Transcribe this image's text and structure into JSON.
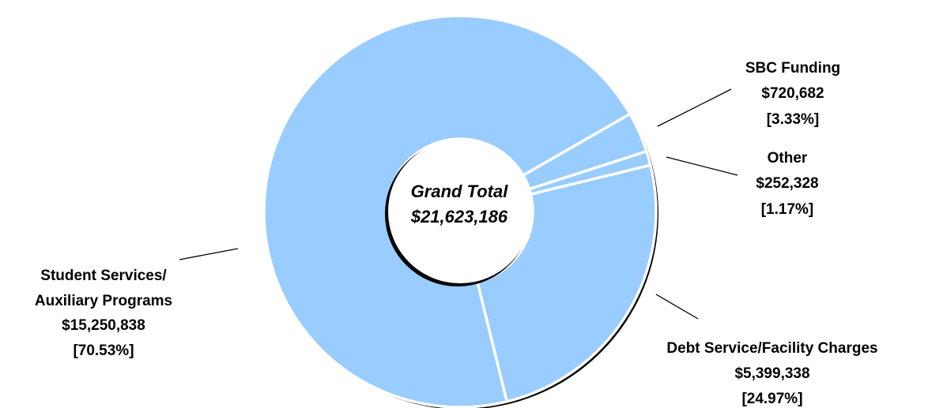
{
  "chart_data": {
    "type": "pie",
    "center_label": {
      "line1": "Grand Total",
      "line2": "$21,623,186"
    },
    "slices": [
      {
        "name": "SBC Funding",
        "amount": "$720,682",
        "percent": "[3.33%]",
        "value": 720682
      },
      {
        "name": "Other",
        "amount": "$252,328",
        "percent": "[1.17%]",
        "value": 252328
      },
      {
        "name": "Debt Service/Facility Charges",
        "amount": "$5,399,338",
        "percent": "[24.97%]",
        "value": 5399338
      },
      {
        "name": "Student Services/ Auxiliary Programs",
        "name_line1": "Student Services/",
        "name_line2": "Auxiliary Programs",
        "amount": "$15,250,838",
        "percent": "[70.53%]",
        "value": 15250838
      }
    ],
    "colors": {
      "fill": "#99CCFF",
      "separator": "#FFFFFF",
      "shadow": "#000000"
    }
  }
}
